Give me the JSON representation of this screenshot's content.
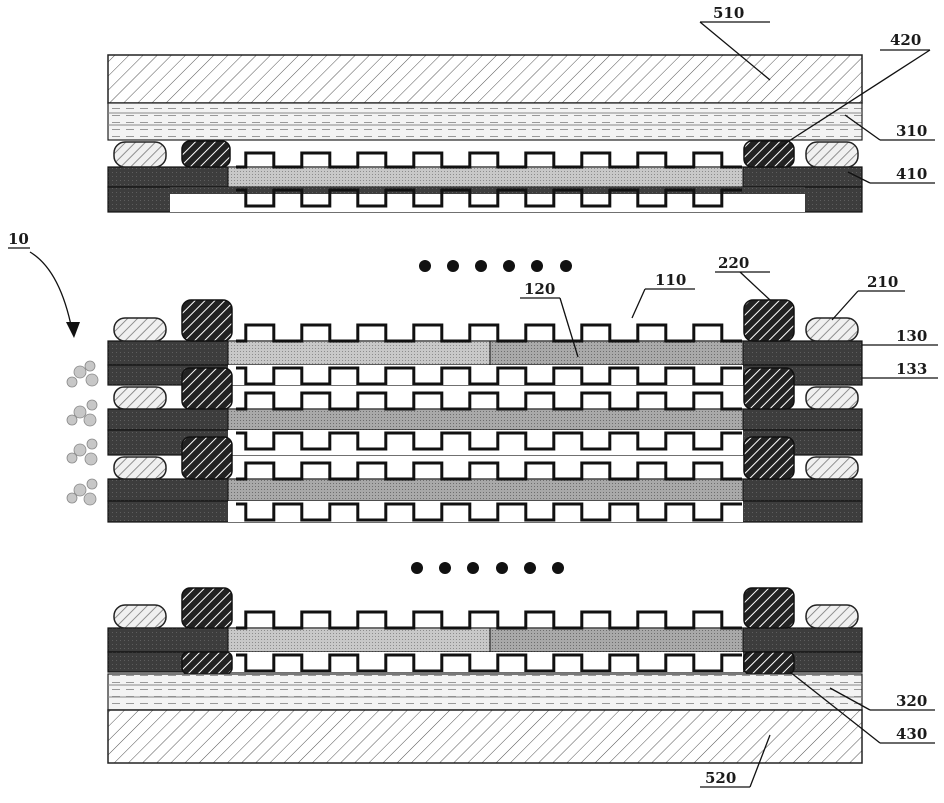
{
  "labels": {
    "l510": "510",
    "l420": "420",
    "l310": "310",
    "l410": "410",
    "l10": "10",
    "l220": "220",
    "l120": "120",
    "l110": "110",
    "l210": "210",
    "l130": "130",
    "l133": "133",
    "l320": "320",
    "l430": "430",
    "l520": "520"
  },
  "colors": {
    "ink": "#1a1a1a",
    "dark_electrode": "#3a3a3a",
    "light_film": "#bdbdbd",
    "mid_film": "#9a9a9a"
  }
}
